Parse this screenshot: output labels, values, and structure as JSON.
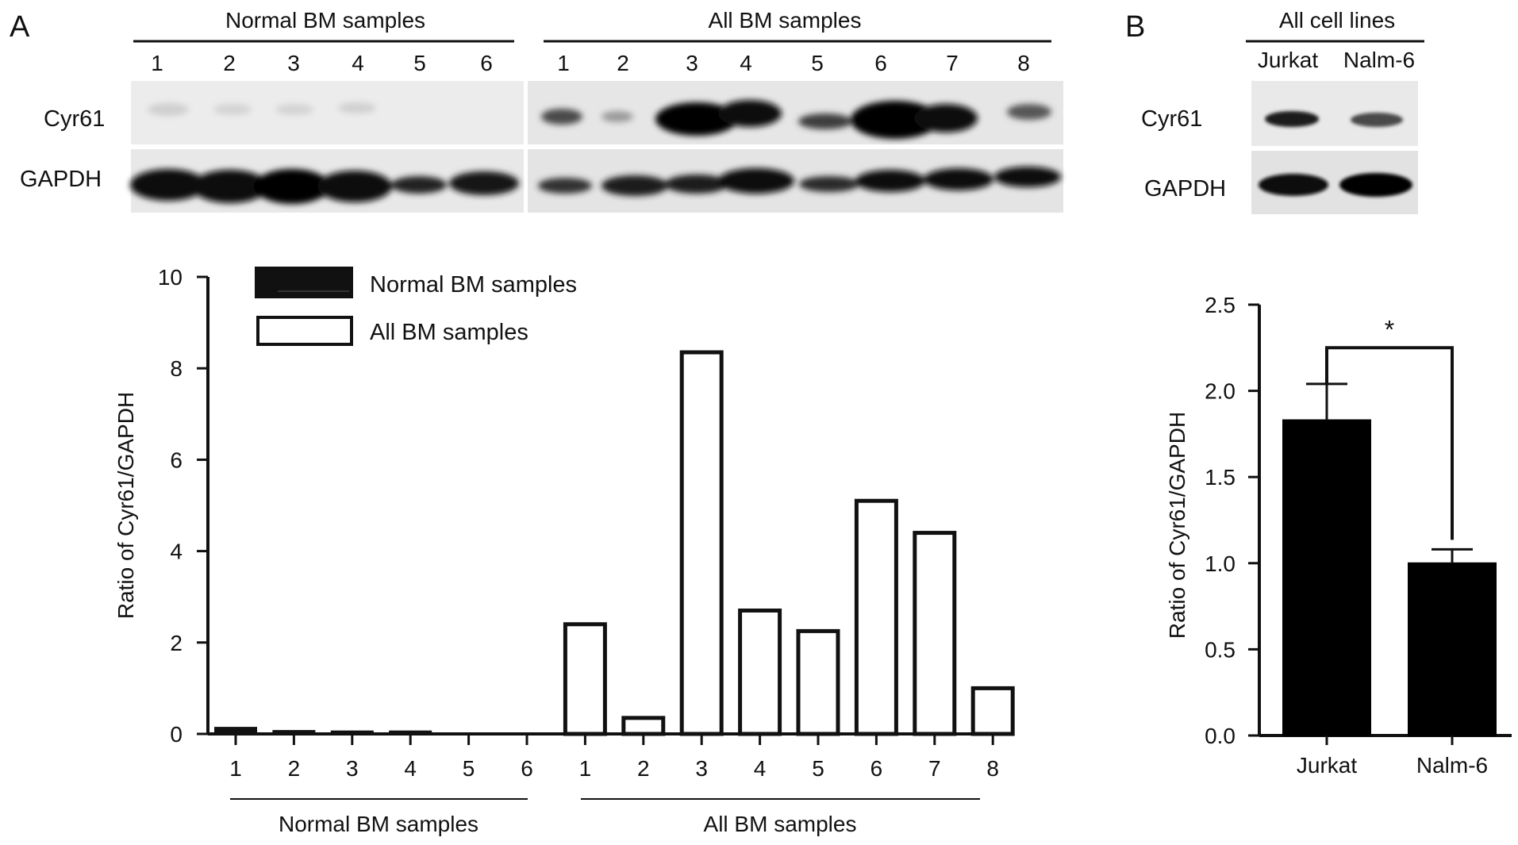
{
  "panels": {
    "a": {
      "letter": "A"
    },
    "b": {
      "letter": "B"
    }
  },
  "blot_a": {
    "normal_header": "Normal BM samples",
    "all_header": "All BM samples",
    "normal_lanes": [
      "1",
      "2",
      "3",
      "4",
      "5",
      "6"
    ],
    "all_lanes": [
      "1",
      "2",
      "3",
      "4",
      "5",
      "6",
      "7",
      "8"
    ],
    "row_labels": [
      "Cyr61",
      "GAPDH"
    ]
  },
  "blot_b": {
    "header": "All cell lines",
    "lanes": [
      "Jurkat",
      "Nalm-6"
    ],
    "row_labels": [
      "Cyr61",
      "GAPDH"
    ]
  },
  "chart_data": [
    {
      "type": "bar",
      "ylabel": "Ratio of Cyr61/GAPDH",
      "ylim": [
        0,
        10
      ],
      "yticks": [
        0,
        2,
        4,
        6,
        8,
        10
      ],
      "legend": {
        "placement": "top-left"
      },
      "groups": [
        {
          "name": "Normal BM samples",
          "color": "#111111",
          "fill": "solid",
          "categories": [
            "1",
            "2",
            "3",
            "4",
            "5",
            "6"
          ],
          "values": [
            0.12,
            0.05,
            0.04,
            0.04,
            0,
            0
          ]
        },
        {
          "name": "All BM samples",
          "color": "#111111",
          "fill": "open",
          "categories": [
            "1",
            "2",
            "3",
            "4",
            "5",
            "6",
            "7",
            "8"
          ],
          "values": [
            2.4,
            0.35,
            8.35,
            2.7,
            2.25,
            5.1,
            4.4,
            1.0
          ]
        }
      ]
    },
    {
      "type": "bar",
      "ylabel": "Ratio of Cyr61/GAPDH",
      "ylim": [
        0,
        2.5
      ],
      "yticks": [
        "0.0",
        "0.5",
        "1.0",
        "1.5",
        "2.0",
        "2.5"
      ],
      "categories": [
        "Jurkat",
        "Nalm-6"
      ],
      "values": [
        1.83,
        1.0
      ],
      "error": [
        0.21,
        0.08
      ],
      "significance": {
        "label": "*",
        "between": [
          "Jurkat",
          "Nalm-6"
        ]
      },
      "color": "#000000"
    }
  ]
}
